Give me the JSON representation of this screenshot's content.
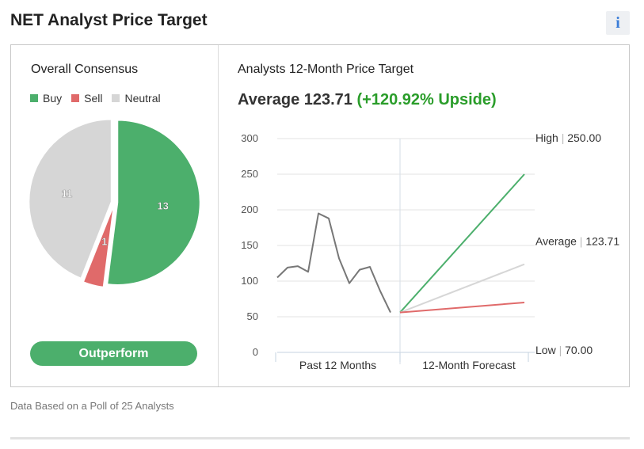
{
  "header": {
    "title": "NET Analyst Price Target",
    "info_icon": "info-icon"
  },
  "consensus": {
    "title": "Overall Consensus",
    "legend": [
      {
        "label": "Buy",
        "color": "#4caf6c"
      },
      {
        "label": "Sell",
        "color": "#e06a6a"
      },
      {
        "label": "Neutral",
        "color": "#d6d6d6"
      }
    ],
    "rating_button": "Outperform"
  },
  "price_target": {
    "title": "Analysts 12-Month Price Target",
    "average_prefix": "Average 123.71",
    "upside": "(+120.92% Upside)"
  },
  "footer": {
    "note": "Data Based on a Poll of 25 Analysts"
  },
  "chart_data": [
    {
      "type": "pie",
      "slices": [
        {
          "label": "Buy",
          "value": 13,
          "color": "#4caf6c"
        },
        {
          "label": "Sell",
          "value": 1,
          "color": "#e06a6a"
        },
        {
          "label": "Neutral",
          "value": 11,
          "color": "#d6d6d6"
        }
      ]
    },
    {
      "type": "line",
      "ylim": [
        0,
        300
      ],
      "y_ticks": [
        0,
        50,
        100,
        150,
        200,
        250,
        300
      ],
      "x_labels": [
        "Past 12 Months",
        "12-Month Forecast"
      ],
      "history": [
        105,
        119,
        121,
        113,
        195,
        188,
        132,
        97,
        116,
        120,
        86,
        56
      ],
      "forecast_start": 56,
      "targets": [
        {
          "name": "High",
          "label": "High",
          "value": 250.0,
          "value_text": "250.00",
          "color": "#4caf6c"
        },
        {
          "name": "Average",
          "label": "Average",
          "value": 123.71,
          "value_text": "123.71",
          "color": "#d6d6d6"
        },
        {
          "name": "Low",
          "label": "Low",
          "value": 70.0,
          "value_text": "70.00",
          "color": "#e06a6a"
        }
      ],
      "grid": true
    }
  ]
}
